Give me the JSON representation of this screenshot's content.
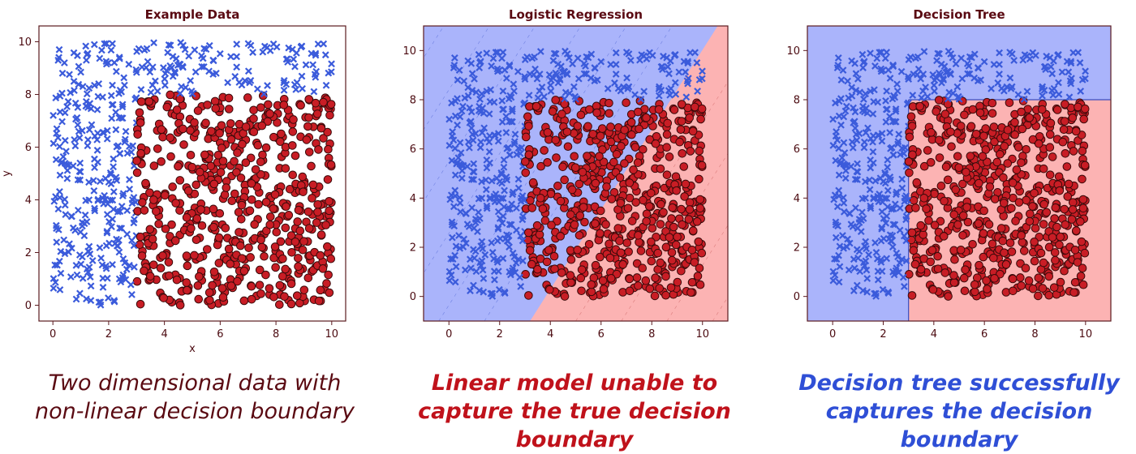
{
  "chart_data": [
    {
      "type": "scatter",
      "title": "Example Data",
      "xlabel": "x",
      "ylabel": "y",
      "xlim": [
        -0.5,
        10.5
      ],
      "ylim": [
        -0.6,
        10.6
      ],
      "xticks": [
        0,
        2,
        4,
        6,
        8,
        10
      ],
      "yticks": [
        0,
        2,
        4,
        6,
        8,
        10
      ],
      "background": "none",
      "caption": "Two dimensional data with non-linear decision boundary",
      "caption_color": "#5a0a12",
      "series": [
        {
          "marker": "x",
          "color": "#3b5bdb",
          "region": "x < 3 or y > 8",
          "approx_count": 500
        },
        {
          "marker": "circle",
          "color": "#c81d25",
          "region": "x >= 3 and y <= 8",
          "approx_count": 500
        }
      ]
    },
    {
      "type": "scatter",
      "title": "Logistic Regression",
      "xlabel": "",
      "ylabel": "",
      "xlim": [
        -1,
        11
      ],
      "ylim": [
        -1,
        11
      ],
      "xticks": [
        0,
        2,
        4,
        6,
        8,
        10
      ],
      "yticks": [
        0,
        2,
        4,
        6,
        8,
        10
      ],
      "background": "linear decision boundary from (3.2, -1) to (10.6, 11)",
      "decision_boundary": [
        [
          3.2,
          -1
        ],
        [
          10.6,
          11
        ]
      ],
      "caption": "Linear model unable to capture the true decision boundary",
      "caption_color": "#c0121b",
      "series": [
        {
          "marker": "x",
          "color": "#3b5bdb",
          "region": "x < 3 or y > 8"
        },
        {
          "marker": "circle",
          "color": "#c81d25",
          "region": "x >= 3 and y <= 8"
        }
      ]
    },
    {
      "type": "scatter",
      "title": "Decision Tree",
      "xlabel": "",
      "ylabel": "",
      "xlim": [
        -1,
        11
      ],
      "ylim": [
        -1,
        11
      ],
      "xticks": [
        0,
        2,
        4,
        6,
        8,
        10
      ],
      "yticks": [
        0,
        2,
        4,
        6,
        8,
        10
      ],
      "background": "axis-aligned split at x = 3 and y = 8",
      "decision_boundary": {
        "x": 3,
        "y": 8
      },
      "caption": "Decision tree successfully captures the decision boundary",
      "caption_color": "#2f4fd6",
      "series": [
        {
          "marker": "x",
          "color": "#3b5bdb",
          "region": "x < 3 or y > 8"
        },
        {
          "marker": "circle",
          "color": "#c81d25",
          "region": "x >= 3 and y <= 8"
        }
      ]
    }
  ],
  "colors": {
    "region_blue": "#aab4fb",
    "region_red": "#fcb3b3",
    "axis_text": "#4b0a10",
    "title_text": "#5a0a12",
    "frame": "#5a1a1f"
  },
  "captions": [
    "Two dimensional data with non-linear decision boundary",
    "Linear model unable to capture the true decision boundary",
    "Decision tree successfully captures the decision boundary"
  ]
}
